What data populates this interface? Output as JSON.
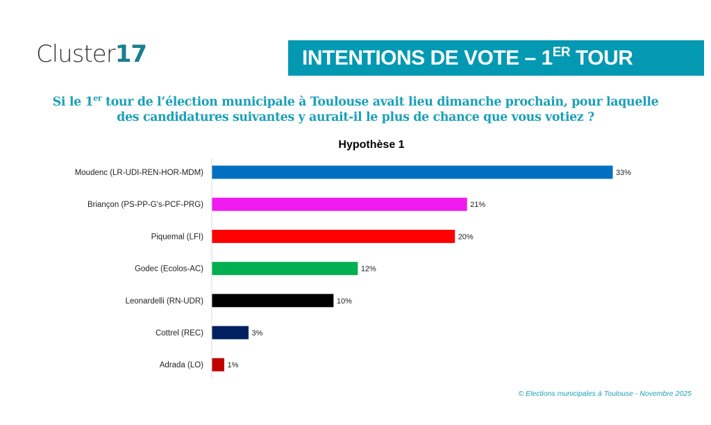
{
  "logo": {
    "text": "Cluster",
    "number": "17"
  },
  "banner": {
    "title": "INTENTIONS DE VOTE – 1",
    "sup": "ER",
    "title_end": " TOUR"
  },
  "question": {
    "part1": "Si le 1",
    "sup": "er",
    "part2": " tour de l’élection municipale à Toulouse avait lieu dimanche prochain, pour laquelle des candidatures suivantes y aurait-il le plus de chance que vous votiez ?"
  },
  "source": "© Elections municipales à Toulouse - Novembre 2025",
  "chart_data": {
    "type": "bar",
    "orientation": "horizontal",
    "title": "Hypothèse 1",
    "categories": [
      "Moudenc (LR-UDI-REN-HOR-MDM)",
      "Briançon (PS-PP-G's-PCF-PRG)",
      "Piquemal (LFI)",
      "Godec (Ecolos-AC)",
      "Leonardelli (RN-UDR)",
      "Cottrel (REC)",
      "Adrada (LO)"
    ],
    "values": [
      33,
      21,
      20,
      12,
      10,
      3,
      1
    ],
    "labels": [
      "33%",
      "21%",
      "20%",
      "12%",
      "10%",
      "3%",
      "1%"
    ],
    "colors": [
      "#0070c0",
      "#f019f0",
      "#ff0000",
      "#00b050",
      "#000000",
      "#002060",
      "#c00000"
    ],
    "unit": "%",
    "grid": false
  }
}
